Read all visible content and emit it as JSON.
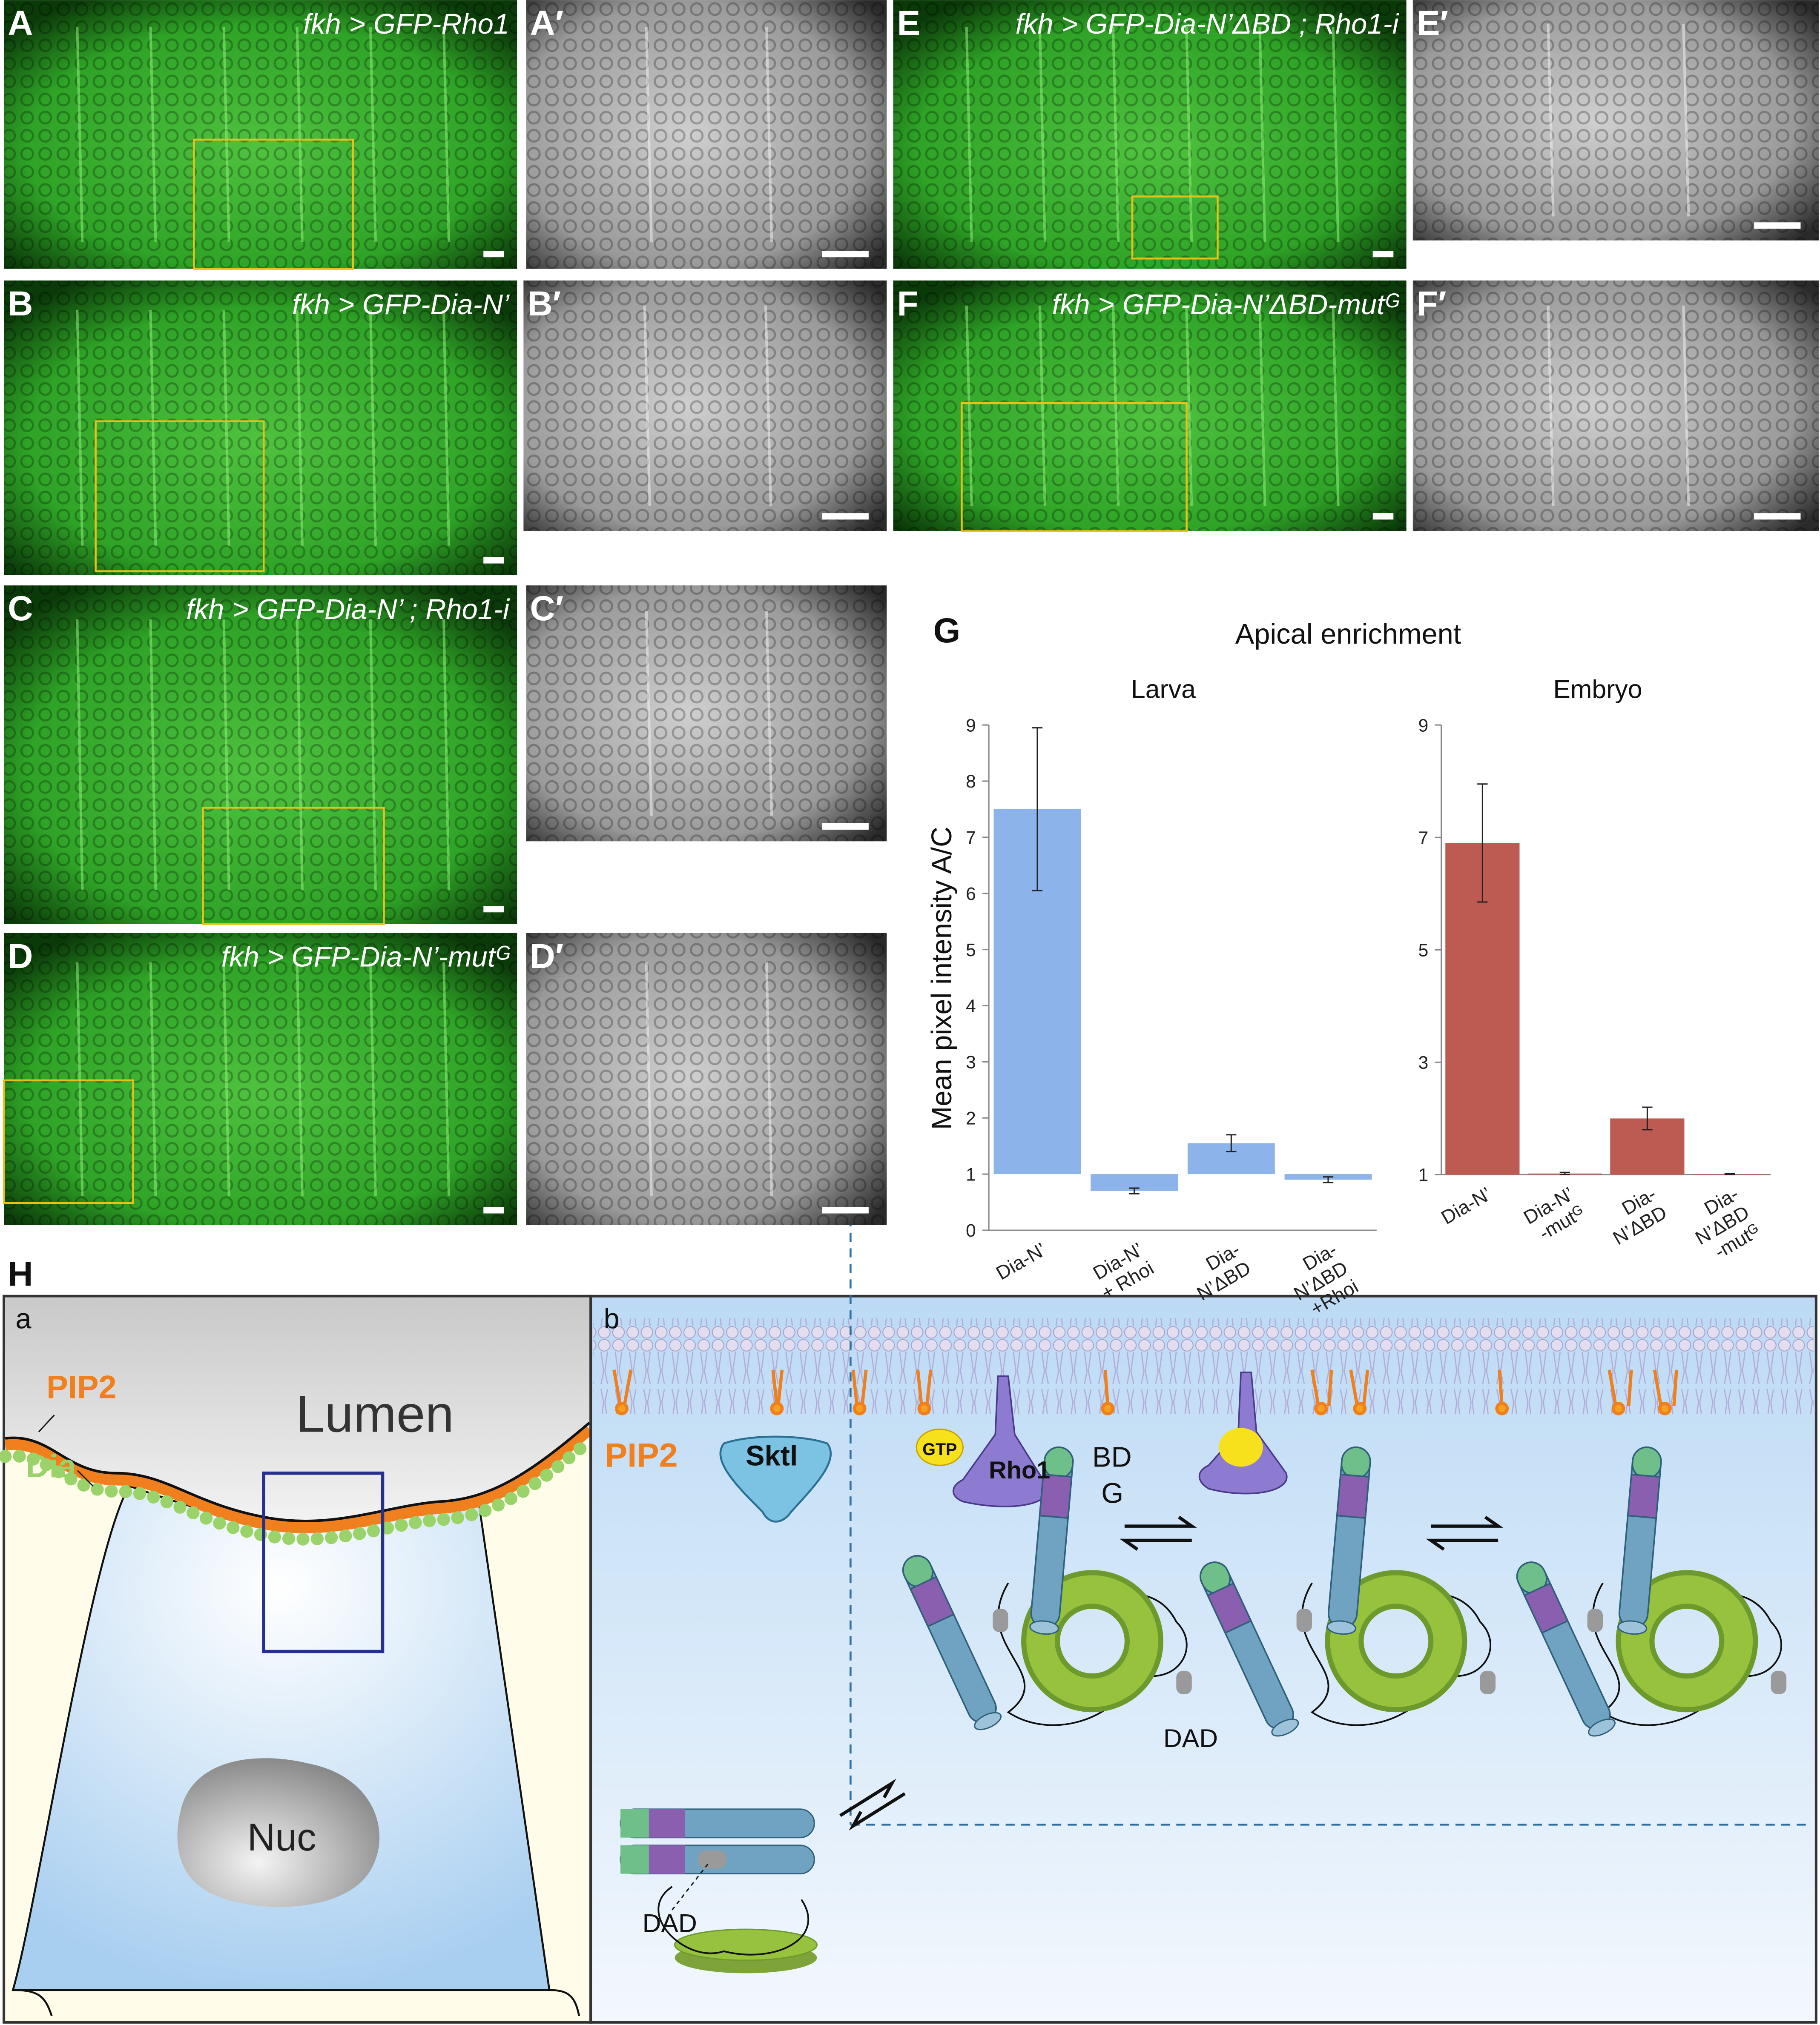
{
  "panels": [
    {
      "label": "A",
      "caption": "fkh > GFP-Rho1"
    },
    {
      "label": "A′"
    },
    {
      "label": "B",
      "caption": "fkh > GFP-Dia-N’"
    },
    {
      "label": "B′"
    },
    {
      "label": "C",
      "caption": "fkh > GFP-Dia-N’ ; Rho1-i"
    },
    {
      "label": "C′"
    },
    {
      "label": "D",
      "caption": "fkh > GFP-Dia-N’-mutᴳ"
    },
    {
      "label": "D′"
    },
    {
      "label": "E",
      "caption": "fkh > GFP-Dia-N’ΔBD ; Rho1-i"
    },
    {
      "label": "E′"
    },
    {
      "label": "F",
      "caption": "fkh > GFP-Dia-N’ΔBD-mutᴳ"
    },
    {
      "label": "F′"
    }
  ],
  "figure_g": {
    "label": "G",
    "title": "Apical enrichment",
    "ylabel": "Mean pixel intensity A/C"
  },
  "chart_data": [
    {
      "type": "bar",
      "title": "Larva",
      "categories": [
        "Dia-N’",
        "Dia-N’\n+ Rhoi",
        "Dia-\nN’ΔBD",
        "Dia-\nN’ΔBD\n+Rhoi"
      ],
      "values": [
        7.5,
        0.7,
        1.55,
        0.9
      ],
      "errors": [
        1.45,
        0.05,
        0.15,
        0.05
      ],
      "bar_base": 1,
      "color": "#8db4ea",
      "ylim": [
        0,
        9
      ],
      "yticks": [
        0,
        1,
        2,
        3,
        4,
        5,
        6,
        7,
        8,
        9
      ]
    },
    {
      "type": "bar",
      "title": "Embryo",
      "categories": [
        "Dia-N’",
        "Dia-N’\n-mutᴳ",
        "Dia-\nN’ΔBD",
        "Dia-\nN’ΔBD\n-mutᴳ"
      ],
      "values": [
        6.9,
        1.02,
        2.0,
        1.01
      ],
      "errors": [
        1.05,
        0.02,
        0.2,
        0.01
      ],
      "bar_base": 1,
      "color": "#bd5a52",
      "ylim": [
        1,
        9
      ],
      "yticks": [
        1,
        3,
        5,
        7,
        9
      ]
    }
  ],
  "diagram": {
    "label": "H",
    "panel_a": {
      "label": "a",
      "pip2": "PIP2",
      "lumen": "Lumen",
      "dia": "Dia",
      "nuc": "Nuc"
    },
    "panel_b": {
      "label": "b",
      "pip2": "PIP2",
      "sktl": "Sktl",
      "gtp": "GTP",
      "rho1": "Rho1",
      "bd": "BD",
      "g": "G",
      "dad": "DAD",
      "dad_bottom": "DAD"
    }
  }
}
